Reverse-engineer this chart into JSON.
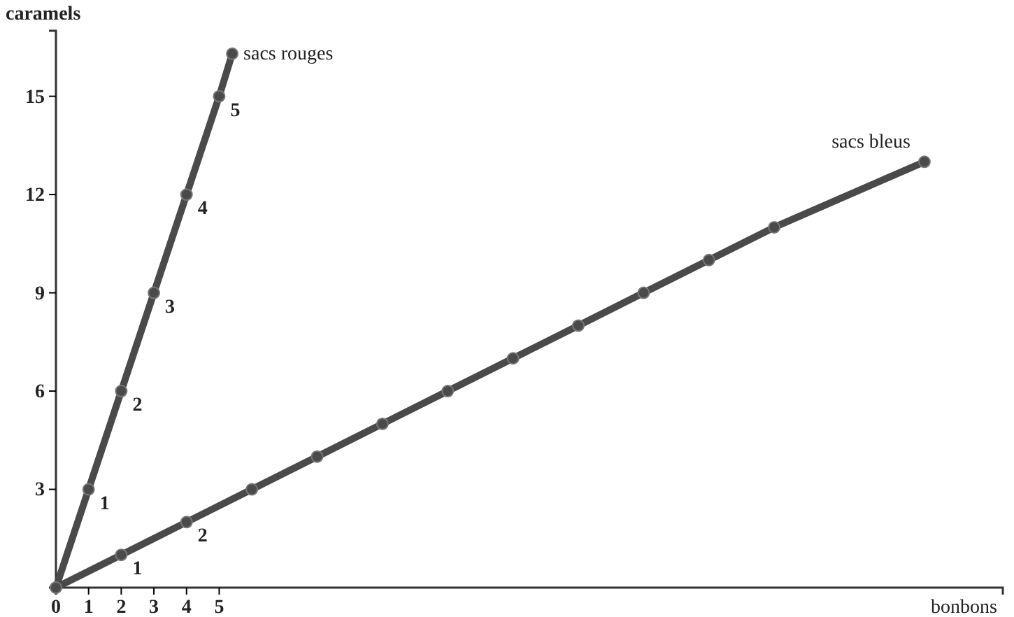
{
  "chart_data": {
    "type": "line",
    "xlabel": "bonbons",
    "ylabel": "caramels",
    "xlim": [
      0,
      29
    ],
    "ylim": [
      0,
      17
    ],
    "xticks": [
      0,
      1,
      2,
      3,
      4,
      5
    ],
    "yticks": [
      3,
      6,
      9,
      12,
      15
    ],
    "marker": "circle",
    "line_style": "solid",
    "grid": false,
    "legend": false,
    "series": [
      {
        "name": "sacs rouges",
        "color": "#4a4a4a",
        "x": [
          0,
          1,
          2,
          3,
          4,
          5,
          5.4
        ],
        "values": [
          0,
          3,
          6,
          9,
          12,
          15,
          16.3
        ]
      },
      {
        "name": "sacs bleus",
        "color": "#4a4a4a",
        "x": [
          0,
          2,
          4,
          6,
          8,
          10,
          12,
          14,
          16,
          18,
          20,
          22,
          26.6
        ],
        "values": [
          0,
          1,
          2,
          3,
          4,
          5,
          6,
          7,
          8,
          9,
          10,
          11,
          13
        ]
      }
    ],
    "annotations": [
      {
        "text": "1",
        "x": 1,
        "y": 3
      },
      {
        "text": "2",
        "x": 2,
        "y": 6
      },
      {
        "text": "3",
        "x": 3,
        "y": 9
      },
      {
        "text": "4",
        "x": 4,
        "y": 12
      },
      {
        "text": "5",
        "x": 5,
        "y": 15
      },
      {
        "text": "1",
        "x": 2,
        "y": 1
      },
      {
        "text": "2",
        "x": 4,
        "y": 2
      }
    ]
  }
}
